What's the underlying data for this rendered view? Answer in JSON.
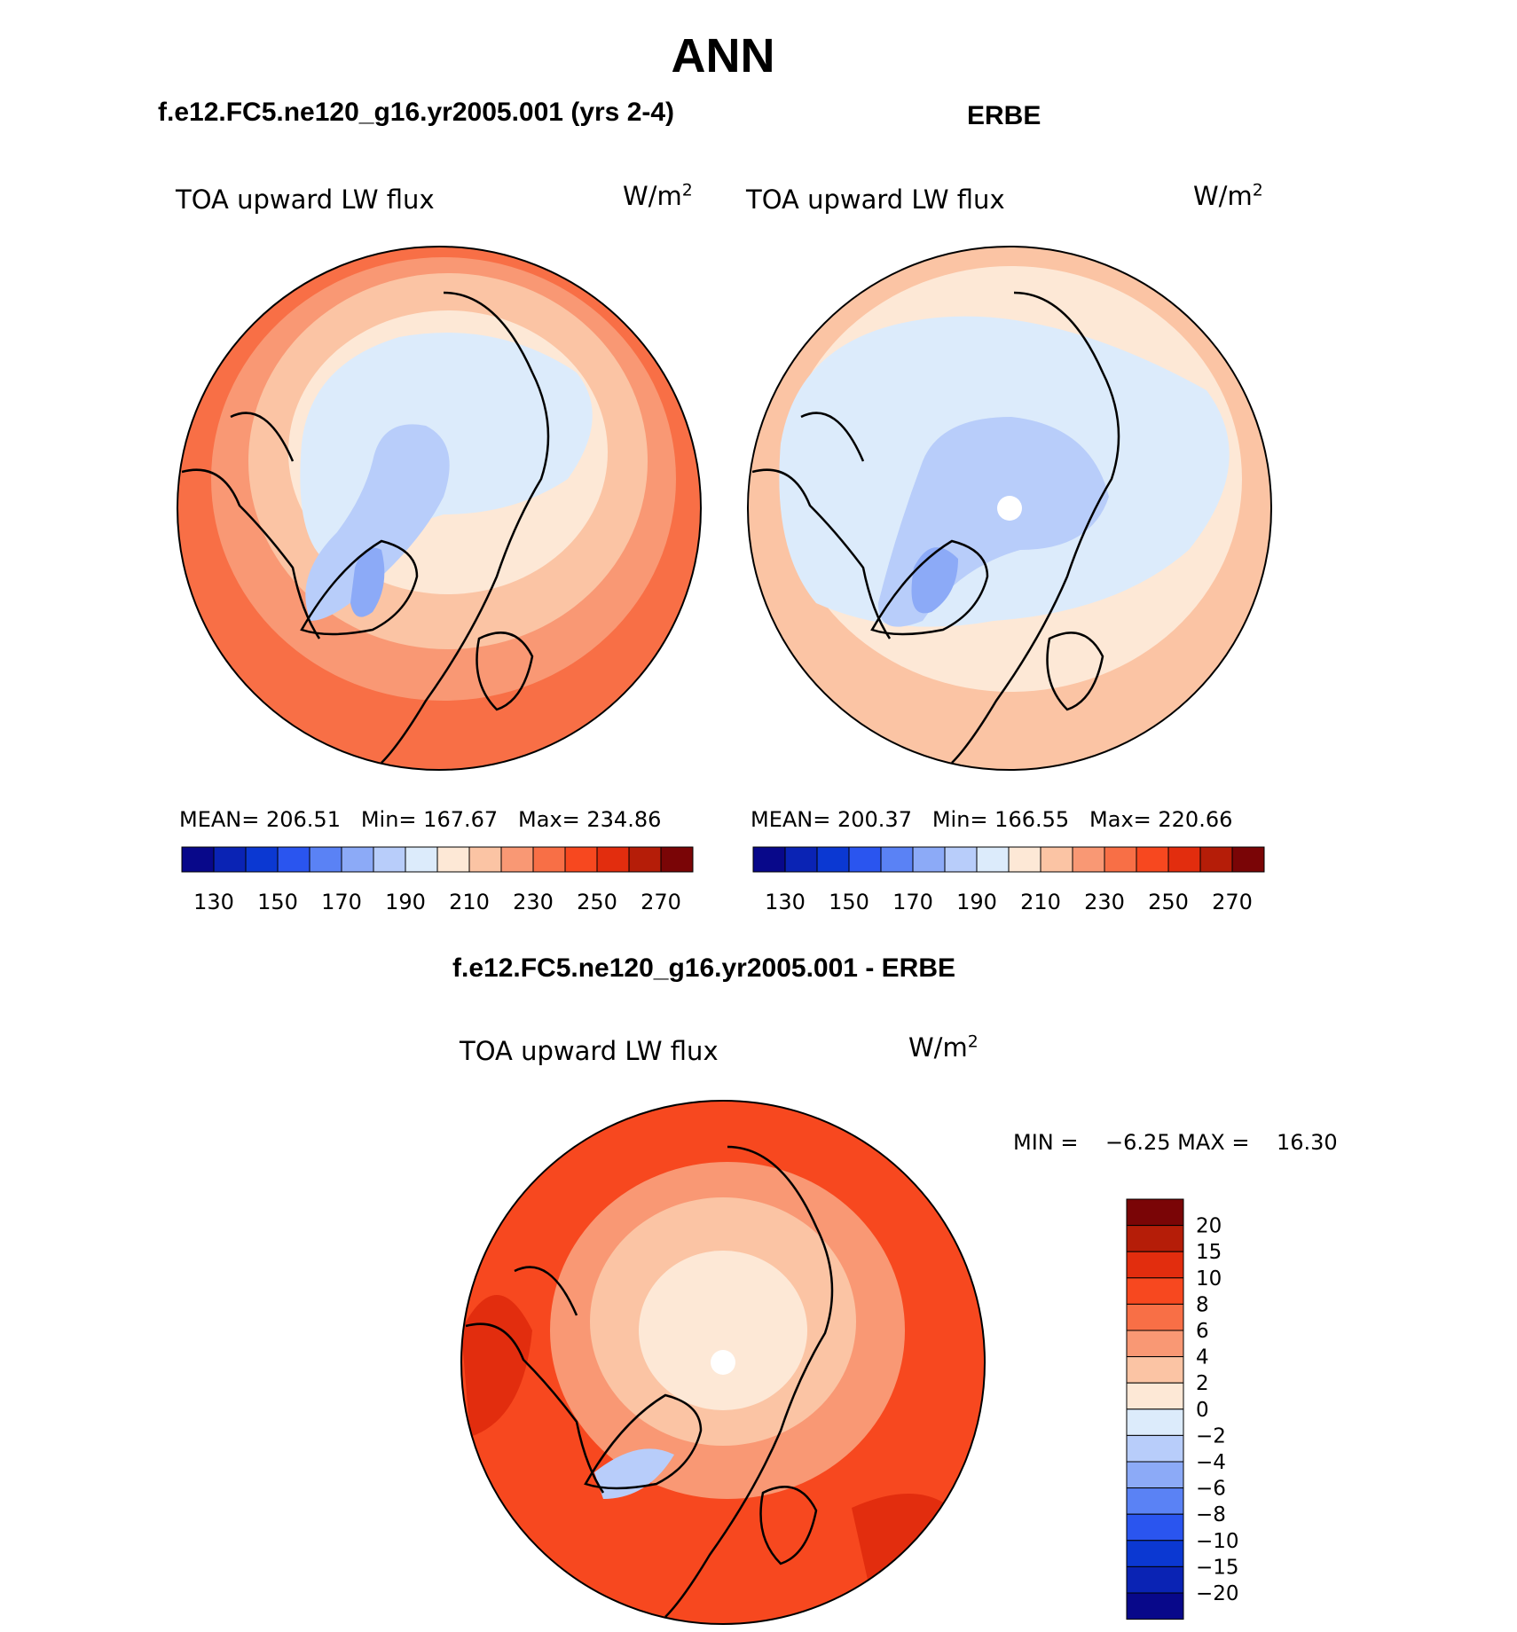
{
  "figure": {
    "main_title": "ANN",
    "panel_left_title": "f.e12.FC5.ne120_g16.yr2005.001 (yrs 2-4)",
    "panel_right_title": "ERBE",
    "panel_diff_title": "f.e12.FC5.ne120_g16.yr2005.001 - ERBE"
  },
  "panels": {
    "left": {
      "variable": "TOA upward LW flux",
      "units_base": "W/m",
      "units_exp": "2",
      "stats": "MEAN= 206.51   Min= 167.67   Max= 234.86"
    },
    "right": {
      "variable": "TOA upward LW flux",
      "units_base": "W/m",
      "units_exp": "2",
      "stats": "MEAN= 200.37   Min= 166.55   Max= 220.66"
    },
    "diff": {
      "variable": "TOA upward LW flux",
      "units_base": "W/m",
      "units_exp": "2",
      "stats": "MIN =    −6.25 MAX =    16.30"
    }
  },
  "colorbar_main": {
    "tick_labels": [
      "130",
      "150",
      "170",
      "190",
      "210",
      "230",
      "250",
      "270"
    ],
    "colors": [
      "#08088a",
      "#0a23b4",
      "#0b38d2",
      "#2a55ef",
      "#5a82f5",
      "#8caaf7",
      "#b8cdfa",
      "#dcebfb",
      "#fde8d6",
      "#fbc4a4",
      "#f99874",
      "#f86f46",
      "#f7481f",
      "#e22d0e",
      "#b51d08",
      "#7a0506"
    ]
  },
  "colorbar_diff": {
    "tick_labels": [
      "20",
      "15",
      "10",
      "8",
      "6",
      "4",
      "2",
      "0",
      "−2",
      "−4",
      "−6",
      "−8",
      "−10",
      "−15",
      "−20"
    ],
    "colors": [
      "#7a0506",
      "#b51d08",
      "#e22d0e",
      "#f7481f",
      "#f86f46",
      "#f99874",
      "#fbc4a4",
      "#fde8d6",
      "#dcebfb",
      "#b8cdfa",
      "#8caaf7",
      "#5a82f5",
      "#2a55ef",
      "#0b38d2",
      "#0a23b4",
      "#08088a"
    ]
  },
  "maps": {
    "colors": {
      "warm_dark": "#f86f46",
      "warm_mid": "#f99874",
      "warm_light": "#fbc4a4",
      "warm_pale": "#fde8d6",
      "cool_pale": "#dcebfb",
      "cool_light": "#b8cdfa",
      "cool_mid": "#8caaf7",
      "cool_dark": "#5a82f5",
      "diff_base": "#f7481f",
      "diff_deep": "#e22d0e",
      "outline": "#000000"
    }
  }
}
